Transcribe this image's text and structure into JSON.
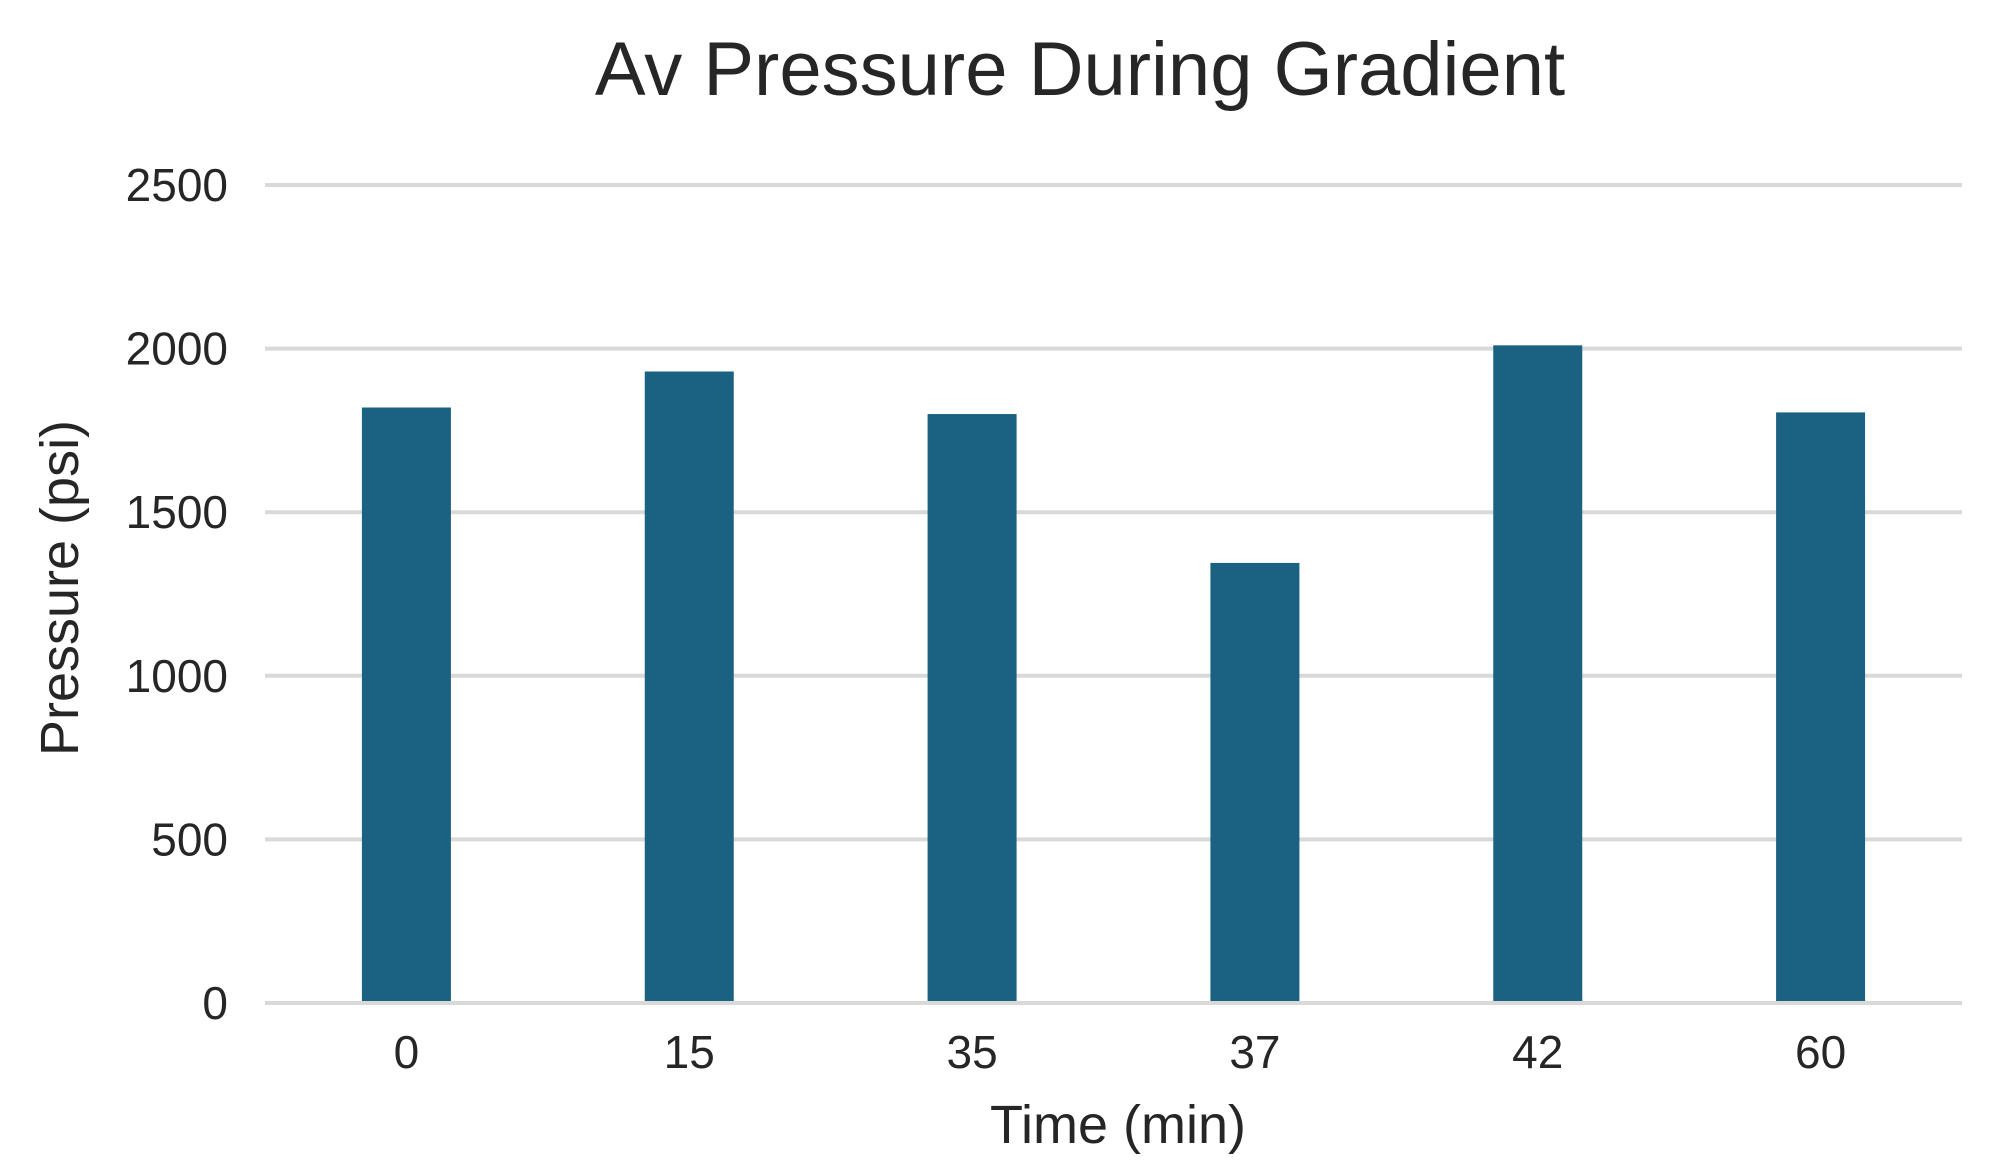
{
  "chart_data": {
    "type": "bar",
    "title": "Av Pressure During Gradient",
    "xlabel": "Time (min)",
    "ylabel": "Pressure (psi)",
    "categories": [
      "0",
      "15",
      "35",
      "37",
      "42",
      "60"
    ],
    "values": [
      1820,
      1930,
      1800,
      1345,
      2010,
      1805
    ],
    "ylim": [
      0,
      2500
    ],
    "yticks": [
      "0",
      "500",
      "1000",
      "1500",
      "2000",
      "2500"
    ],
    "ytick_values": [
      0,
      500,
      1000,
      1500,
      2000,
      2500
    ],
    "grid": true,
    "legend": "none",
    "colors": {
      "bar": "#1b6282",
      "grid": "#d9d9d9",
      "text": "#262626"
    }
  }
}
